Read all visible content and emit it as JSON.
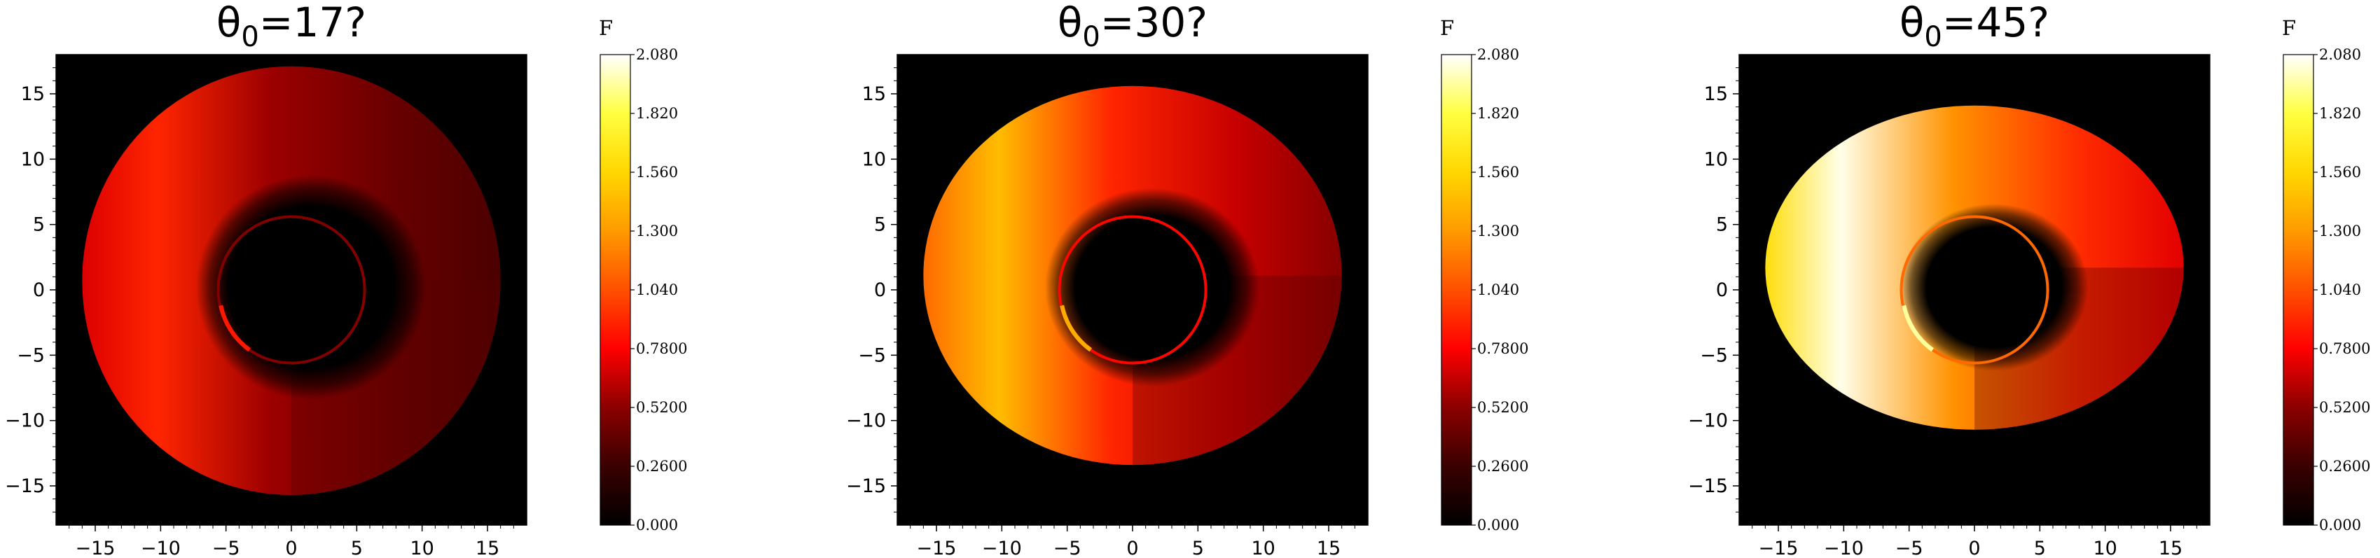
{
  "chart_data": [
    {
      "type": "heatmap",
      "title_prefix": "θ",
      "title_sub": "0",
      "title_suffix": "=17?",
      "xlim": [
        -18,
        18
      ],
      "ylim": [
        -18,
        18
      ],
      "xticks": [
        -15,
        -10,
        -5,
        0,
        5,
        10,
        15
      ],
      "yticks": [
        -15,
        -10,
        -5,
        0,
        5,
        10,
        15
      ],
      "disk": {
        "outer_rx": 16,
        "outer_ry": 16.4,
        "outer_cy": 0.7,
        "shadow_rx": 8.8,
        "shadow_ry": 8.6,
        "ring_r": 5.6,
        "bright_side": "left",
        "peak_value": 0.9
      },
      "colorbar": {
        "label": "F",
        "min": 0,
        "max": 2.08,
        "ticks": [
          "2.080",
          "1.820",
          "1.560",
          "1.300",
          "1.040",
          "0.7800",
          "0.5200",
          "0.2600",
          "0.000"
        ]
      }
    },
    {
      "type": "heatmap",
      "title_prefix": "θ",
      "title_sub": "0",
      "title_suffix": "=30?",
      "xlim": [
        -18,
        18
      ],
      "ylim": [
        -18,
        18
      ],
      "xticks": [
        -15,
        -10,
        -5,
        0,
        5,
        10,
        15
      ],
      "yticks": [
        -15,
        -10,
        -5,
        0,
        5,
        10,
        15
      ],
      "disk": {
        "outer_rx": 16,
        "outer_ry": 14.5,
        "outer_cy": 1.1,
        "shadow_rx": 8.2,
        "shadow_ry": 7.6,
        "ring_r": 5.6,
        "bright_side": "left",
        "peak_value": 1.45
      },
      "colorbar": {
        "label": "F",
        "min": 0,
        "max": 2.08,
        "ticks": [
          "2.080",
          "1.820",
          "1.560",
          "1.300",
          "1.040",
          "0.7800",
          "0.5200",
          "0.2600",
          "0.000"
        ]
      }
    },
    {
      "type": "heatmap",
      "title_prefix": "θ",
      "title_sub": "0",
      "title_suffix": "=45?",
      "xlim": [
        -18,
        18
      ],
      "ylim": [
        -18,
        18
      ],
      "xticks": [
        -15,
        -10,
        -5,
        0,
        5,
        10,
        15
      ],
      "yticks": [
        -15,
        -10,
        -5,
        0,
        5,
        10,
        15
      ],
      "disk": {
        "outer_rx": 16,
        "outer_ry": 12.4,
        "outer_cy": 1.7,
        "shadow_rx": 7.2,
        "shadow_ry": 6.4,
        "ring_r": 5.6,
        "bright_side": "left",
        "peak_value": 2.05
      },
      "colorbar": {
        "label": "F",
        "min": 0,
        "max": 2.08,
        "ticks": [
          "2.080",
          "1.820",
          "1.560",
          "1.300",
          "1.040",
          "0.7800",
          "0.5200",
          "0.2600",
          "0.000"
        ]
      }
    }
  ],
  "colors": {
    "background": "#000000",
    "colormap": [
      "#000000",
      "#3a0000",
      "#8b0000",
      "#ff0000",
      "#ff5000",
      "#ff9a00",
      "#ffd700",
      "#ffff40",
      "#ffffff"
    ]
  }
}
